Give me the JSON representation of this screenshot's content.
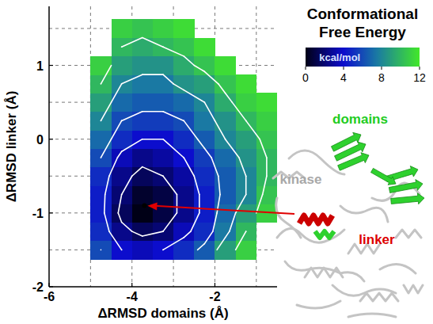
{
  "chart_data": {
    "type": "heatmap",
    "x_label": "ΔRMSD domains (Å)",
    "y_label": "ΔRMSD linker (Å)",
    "xlim": [
      -6,
      -0.5
    ],
    "ylim": [
      -2,
      1.8
    ],
    "xticks": [
      -6,
      -4,
      -2
    ],
    "yticks": [
      -2,
      -1,
      0,
      1
    ],
    "grid": true,
    "x_grid": [
      -5,
      -4,
      -3,
      -2,
      -1
    ],
    "y_grid": [
      -1.5,
      -1,
      -0.5,
      0,
      0.5,
      1,
      1.5
    ],
    "x": [
      -4.75,
      -4.25,
      -3.75,
      -3.25,
      -2.75,
      -2.25,
      -1.75,
      -1.25,
      -0.75
    ],
    "y": [
      -1.5,
      -1.25,
      -1.0,
      -0.75,
      -0.5,
      -0.25,
      0,
      0.25,
      0.5,
      0.75,
      1.0,
      1.25,
      1.5
    ],
    "cells": [
      [
        6,
        4,
        3.5,
        4,
        5,
        6.5,
        9,
        11,
        null
      ],
      [
        5,
        2.5,
        1.5,
        2,
        3.5,
        5,
        7.5,
        10,
        null
      ],
      [
        4.5,
        1.5,
        0,
        1,
        2.5,
        4.5,
        7,
        9,
        11
      ],
      [
        4.5,
        2,
        0.5,
        1,
        2.5,
        4.5,
        6.5,
        8,
        10.5
      ],
      [
        5,
        2.5,
        1.5,
        2,
        3,
        5,
        6.5,
        8,
        10
      ],
      [
        6,
        3.5,
        2.5,
        3,
        4,
        5.5,
        7,
        8.5,
        10
      ],
      [
        7,
        5,
        4,
        4,
        5,
        6.5,
        8,
        9,
        10.5
      ],
      [
        8,
        6,
        5.5,
        5.5,
        6,
        7.5,
        8.5,
        10,
        11
      ],
      [
        9,
        7,
        6.5,
        6.5,
        7,
        8,
        9.5,
        11,
        11.5
      ],
      [
        10,
        8,
        7.5,
        7.5,
        8.5,
        9,
        10.5,
        11.5,
        null
      ],
      [
        11,
        9,
        8.5,
        8.5,
        9.5,
        10.5,
        11.5,
        null,
        null
      ],
      [
        null,
        10,
        9.5,
        10,
        10.5,
        11.5,
        null,
        null,
        null
      ],
      [
        null,
        11,
        10.5,
        11,
        11.5,
        null,
        null,
        null,
        null
      ]
    ],
    "contour_levels": [
      2,
      4,
      6,
      8,
      10
    ],
    "colorbar": {
      "title": "Conformational Free Energy",
      "label": "kcal/mol",
      "range": [
        0,
        12
      ],
      "ticks": [
        0,
        4,
        8,
        12
      ]
    },
    "minimum": {
      "x": -3.7,
      "y": -0.9
    },
    "annotations": [
      {
        "text": "domains",
        "color": "#22cc22"
      },
      {
        "text": "kinase",
        "color": "#a8a8a8"
      },
      {
        "text": "linker",
        "color": "#dd0000"
      }
    ]
  }
}
